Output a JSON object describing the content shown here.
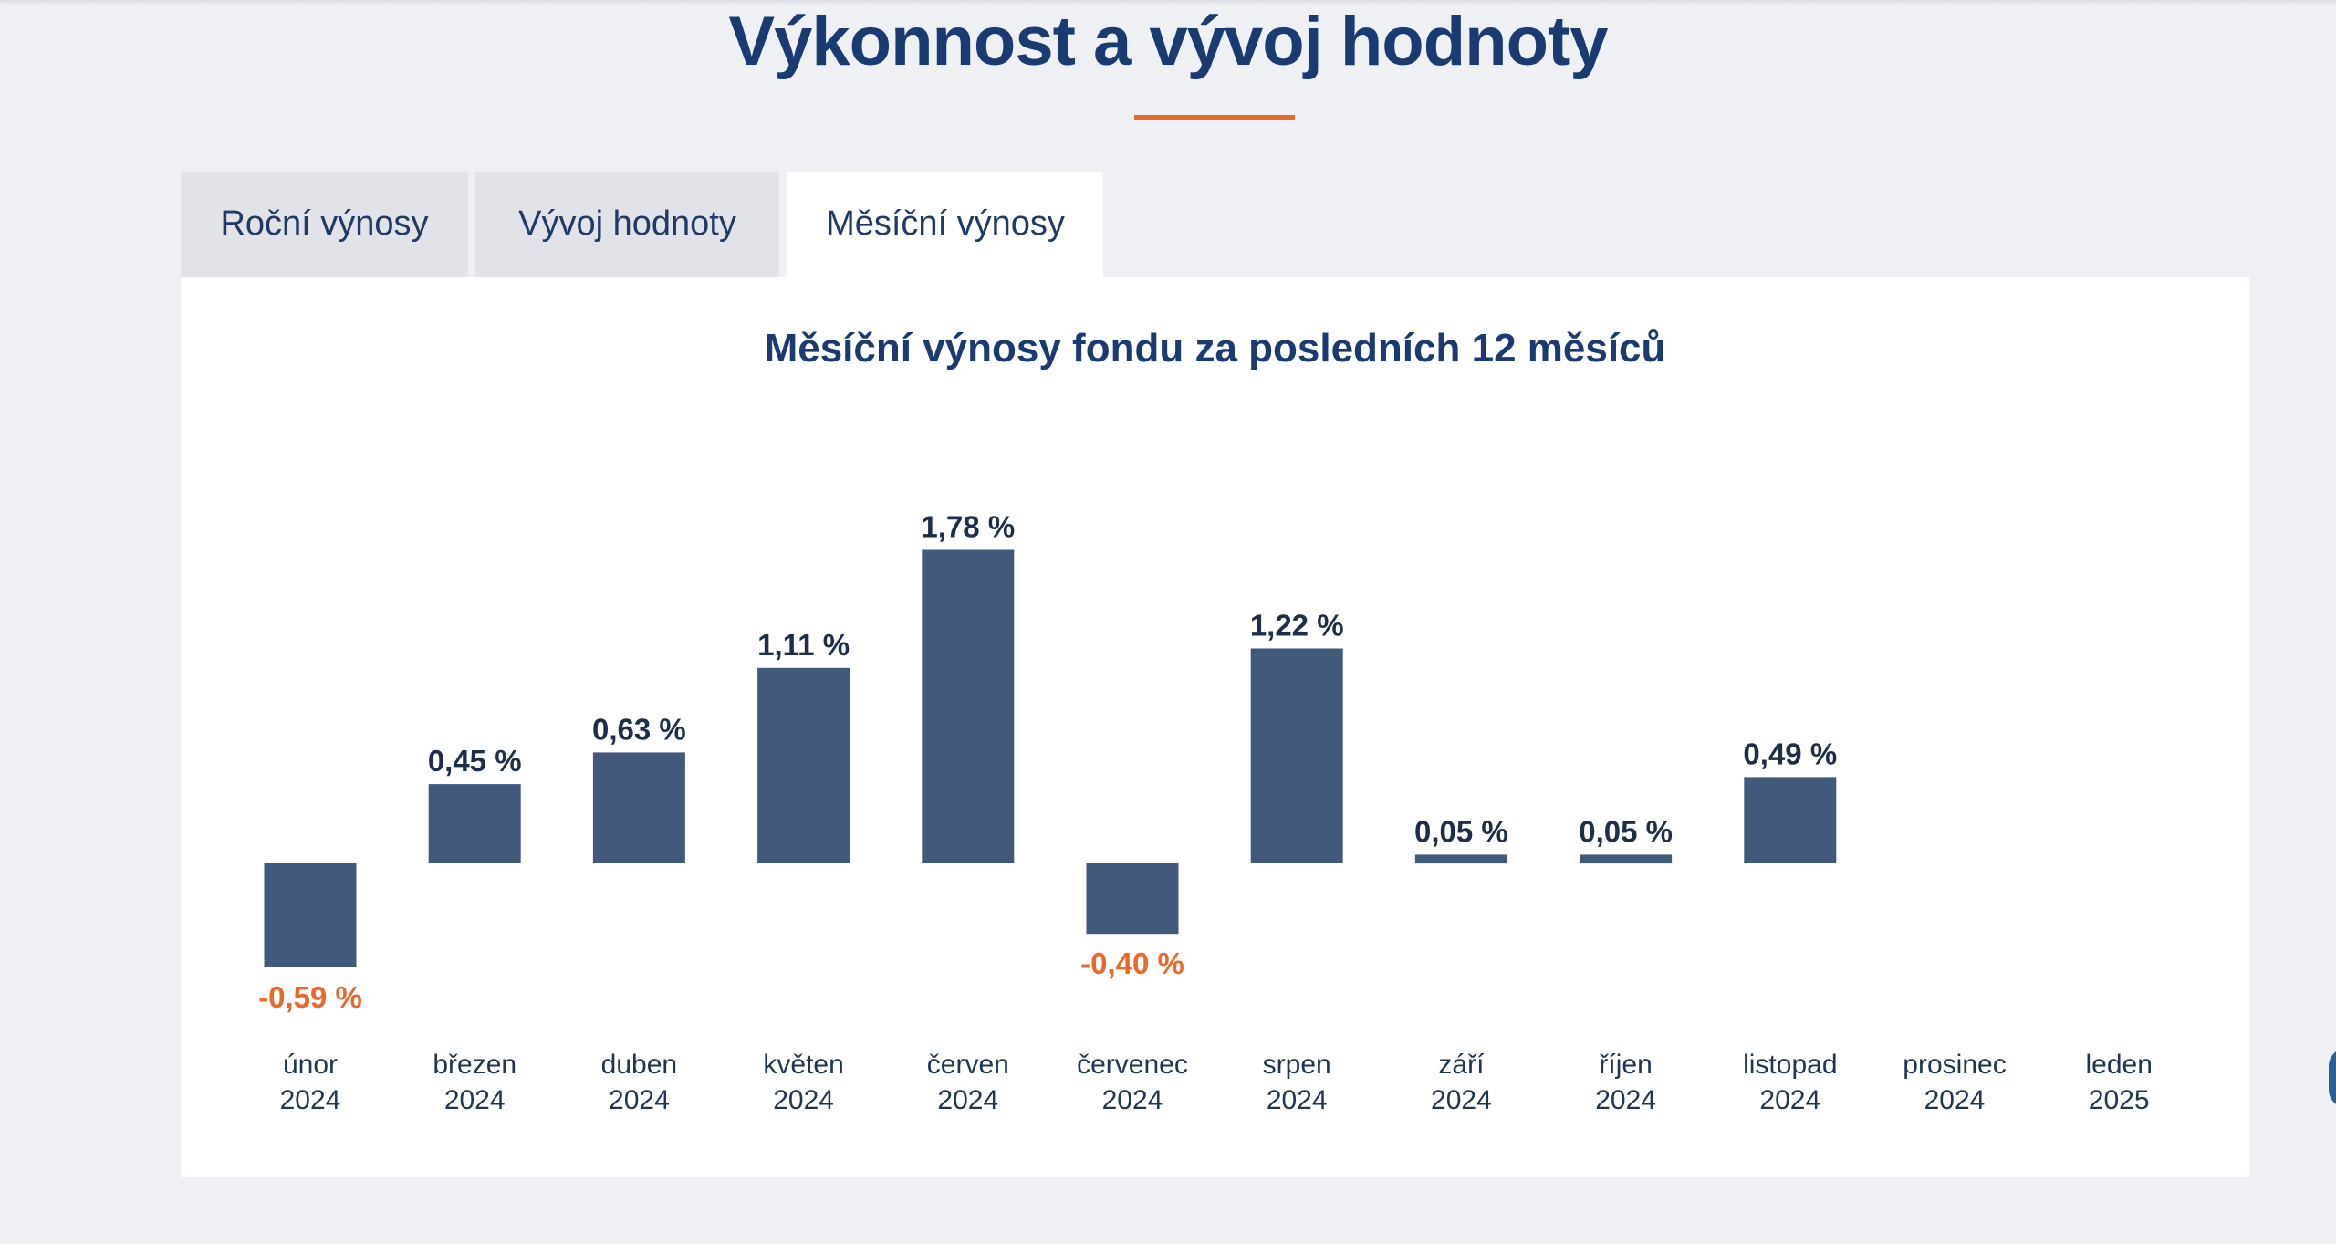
{
  "page": {
    "title": "Výkonnost a vývoj hodnoty"
  },
  "tabs": [
    {
      "label": "Roční výnosy",
      "active": false
    },
    {
      "label": "Vývoj hodnoty",
      "active": false
    },
    {
      "label": "Měsíční výnosy",
      "active": true
    }
  ],
  "colors": {
    "accent": "#e8692a",
    "bar": "#415a7c",
    "title": "#1a3a72",
    "negative_label": "#e8692a",
    "positive_label": "#1d2d4a"
  },
  "chart_data": {
    "type": "bar",
    "title": "Měsíční výnosy fondu za posledních 12 měsíců",
    "categories": [
      [
        "únor",
        "2024"
      ],
      [
        "březen",
        "2024"
      ],
      [
        "duben",
        "2024"
      ],
      [
        "květen",
        "2024"
      ],
      [
        "červen",
        "2024"
      ],
      [
        "červenec",
        "2024"
      ],
      [
        "srpen",
        "2024"
      ],
      [
        "září",
        "2024"
      ],
      [
        "říjen",
        "2024"
      ],
      [
        "listopad",
        "2024"
      ],
      [
        "prosinec",
        "2024"
      ],
      [
        "leden",
        "2025"
      ]
    ],
    "values": [
      -0.59,
      0.45,
      0.63,
      1.11,
      1.78,
      -0.4,
      1.22,
      0.05,
      0.05,
      0.49,
      null,
      null
    ],
    "value_labels": [
      "-0,59 %",
      "0,45 %",
      "0,63 %",
      "1,11 %",
      "1,78 %",
      "-0,40 %",
      "1,22 %",
      "0,05 %",
      "0,05 %",
      "0,49 %",
      "",
      ""
    ],
    "unit": "%",
    "grid": false,
    "legend": "none"
  }
}
